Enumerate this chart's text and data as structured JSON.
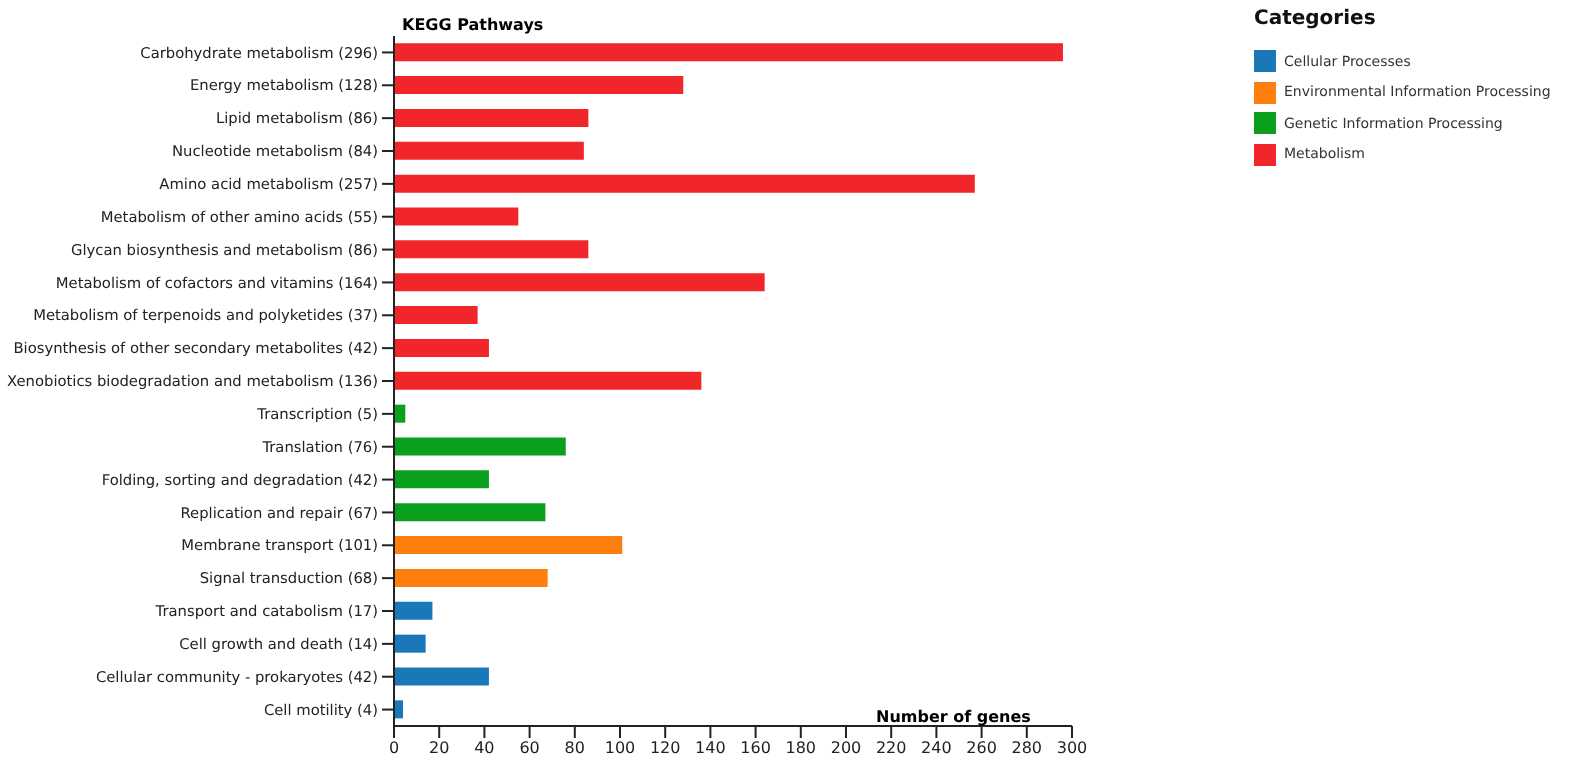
{
  "chart_data": {
    "type": "bar",
    "orientation": "horizontal",
    "stacked": true,
    "title": "KEGG Pathways",
    "xlabel": "Number of genes",
    "legend_title": "Categories",
    "legend": "top right",
    "grid": false,
    "categories": [
      "Carbohydrate metabolism (296)",
      "Energy metabolism (128)",
      "Lipid metabolism (86)",
      "Nucleotide metabolism (84)",
      "Amino acid metabolism (257)",
      "Metabolism of other amino acids (55)",
      "Glycan biosynthesis and metabolism (86)",
      "Metabolism of cofactors and vitamins (164)",
      "Metabolism of terpenoids and polyketides (37)",
      "Biosynthesis of other secondary metabolites (42)",
      "Xenobiotics biodegradation and metabolism (136)",
      "Transcription (5)",
      "Translation (76)",
      "Folding, sorting and degradation (42)",
      "Replication and repair (67)",
      "Membrane transport (101)",
      "Signal transduction (68)",
      "Transport and catabolism (17)",
      "Cell growth and death (14)",
      "Cellular community - prokaryotes (42)",
      "Cell motility (4)"
    ],
    "series": [
      {
        "name": "Cellular Processes",
        "color": "#1a77b8",
        "values": [
          null,
          null,
          null,
          null,
          null,
          null,
          null,
          null,
          null,
          null,
          null,
          null,
          null,
          null,
          null,
          null,
          null,
          17,
          14,
          42,
          4
        ]
      },
      {
        "name": "Environmental Information Processing",
        "color": "#ff7f0e",
        "values": [
          null,
          null,
          null,
          null,
          null,
          null,
          null,
          null,
          null,
          null,
          null,
          null,
          null,
          null,
          null,
          101,
          68,
          null,
          null,
          null,
          null
        ]
      },
      {
        "name": "Genetic Information Processing",
        "color": "#0aa01e",
        "values": [
          null,
          null,
          null,
          null,
          null,
          null,
          null,
          null,
          null,
          null,
          null,
          5,
          76,
          42,
          67,
          null,
          null,
          null,
          null,
          null,
          null
        ]
      },
      {
        "name": "Metabolism",
        "color": "#f0262a",
        "values": [
          296,
          128,
          86,
          84,
          257,
          55,
          86,
          164,
          37,
          42,
          136,
          null,
          null,
          null,
          null,
          null,
          null,
          null,
          null,
          null,
          null
        ]
      }
    ],
    "xlim": [
      0,
      300
    ],
    "xticks": [
      0,
      20,
      40,
      60,
      80,
      100,
      120,
      140,
      160,
      180,
      200,
      220,
      240,
      260,
      280,
      300
    ]
  }
}
